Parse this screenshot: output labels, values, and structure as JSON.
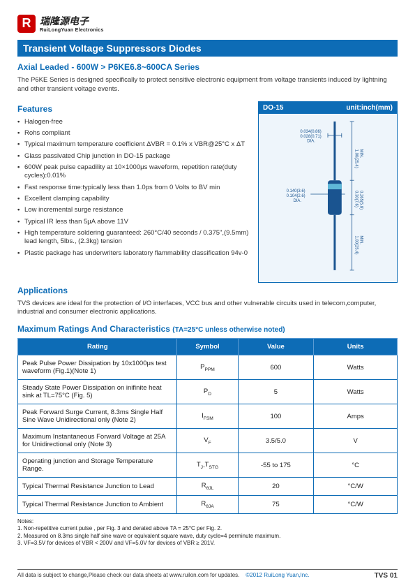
{
  "logo": {
    "letter": "R",
    "cn": "瑞隆源电子",
    "en": "RuiLongYuan Electronics"
  },
  "titlebar": "Transient Voltage Suppressors Diodes",
  "subtitle": "Axial Leaded - 600W > P6KE6.8~600CA Series",
  "intro": "The P6KE Series is designed specifically to protect sensitive electronic equipment from voltage transients induced by lightning and other transient voltage events.",
  "features_h": "Features",
  "features": [
    "Halogen-free",
    "Rohs compliant",
    "Typical maximum temperature coefficient ΔVBR = 0.1% x VBR@25°C x ΔT",
    "Glass passivated Chip junction in DO-15 package",
    "600W peak pulse capadility at 10×1000μs waveform, repetition rate(duty cycles):0.01%",
    "Fast response time:typically less than 1.0ps from 0 Volts to BV min",
    "Excellent clamping capability",
    "Low incremental surge resistance",
    "Typical IR less than 5μA above 11V",
    "High temperature soldering guaranteed: 260°C/40 seconds / 0.375\",(9.5mm) lead length, 5lbs., (2.3kg) tension",
    "Plastic package has underwriters laboratory flammability classification 94v-0"
  ],
  "pkg": {
    "name": "DO-15",
    "unit": "unit:inch(mm)",
    "dim_w1": "0.034(0.86)",
    "dim_w2": "0.028(0.71)",
    "dim_w3": "DIA.",
    "dim_l1": "1.00(25.4)",
    "dim_l2": "MIN.",
    "dim_b1": "0.140(3.6)",
    "dim_b2": "0.104(2.6)",
    "dim_b3": "DIA.",
    "dim_h1": "0.30(7.6)",
    "dim_h2": "0.265(5.8)",
    "dim_l3": "1.00(25.4)",
    "dim_l4": "MIN."
  },
  "apps_h": "Applications",
  "apps_text": "TVS devices are ideal for the protection of I/O interfaces, VCC bus and other vulnerable circuits used in telecom,computer, industrial and consumer electronic applications.",
  "ratings_h": "Maximum Ratings And Characteristics",
  "ratings_cond": "(TA=25°C unless otherwise noted)",
  "table": {
    "headers": [
      "Rating",
      "Symbol",
      "Value",
      "Units"
    ],
    "rows": [
      {
        "rating": "Peak Pulse Power Dissipation by 10x1000μs test waveform (Fig.1)(Note 1)",
        "symbol": "P<sub>PPM</sub>",
        "value": "600",
        "units": "Watts"
      },
      {
        "rating": "Steady State Power Dissipation on inifinite heat sink at TL=75°C (Fig. 5)",
        "symbol": "P<sub>D</sub>",
        "value": "5",
        "units": "Watts"
      },
      {
        "rating": "Peak Forward Surge Current, 8.3ms Single Half Sine Wave Unidirectional only (Note 2)",
        "symbol": "I<sub>FSM</sub>",
        "value": "100",
        "units": "Amps"
      },
      {
        "rating": "Maximum Instantaneous Forward Voltage at 25A for Unidirectional only (Note 3)",
        "symbol": "V<sub>F</sub>",
        "value": "3.5/5.0",
        "units": "V"
      },
      {
        "rating": "Operating junction and Storage Temperature Range.",
        "symbol": "T<sub>J</sub>,T<sub>STG</sub>",
        "value": "-55 to 175",
        "units": "°C"
      },
      {
        "rating": "Typical Thermal Resistance Junction to Lead",
        "symbol": "R<sub>θJL</sub>",
        "value": "20",
        "units": "°C/W"
      },
      {
        "rating": "Typical Thermal Resistance Junction to Ambient",
        "symbol": "R<sub>θJA</sub>",
        "value": "75",
        "units": "°C/W"
      }
    ]
  },
  "notes_h": "Notes:",
  "notes": [
    "1. Non-repetitive current pulse , per Fig. 3 and derated above TA = 25°C per Fig. 2.",
    "2. Measured on 8.3ms single half sine wave or equivalent square wave, duty cycle=4 perminute maximum.",
    "3. VF=3.5V for devices of VBR < 200V and VF=5.0V for devices of VBR ≥ 201V."
  ],
  "footer": {
    "left": "All data is subject to change,Please check our data sheets at www.ruilon.com for updates.",
    "copy": "©2012 RuiLong Yuan,Inc.",
    "code": "TVS 01"
  },
  "colors": {
    "brand_blue": "#0d6cb6",
    "brand_red": "#cc0000",
    "pkg_bg": "#eef5fb"
  }
}
